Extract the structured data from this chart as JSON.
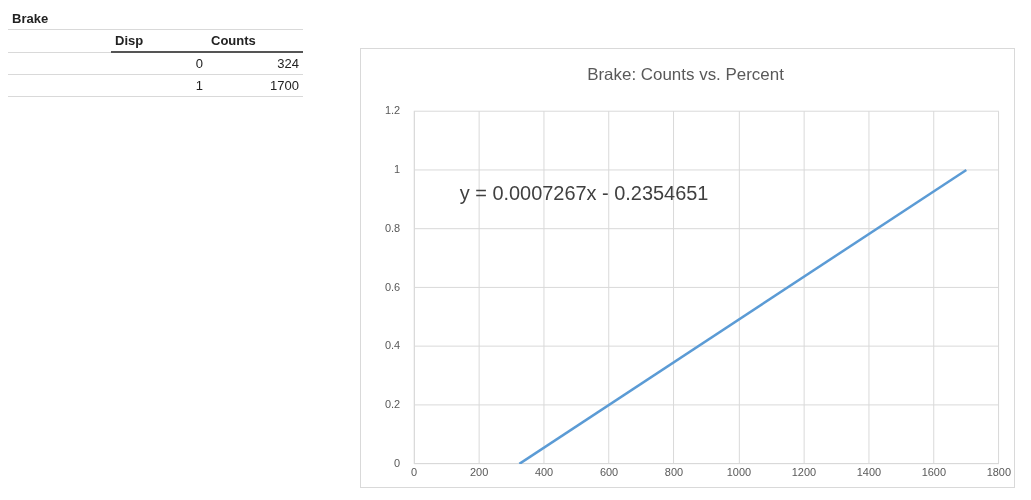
{
  "chart_data": {
    "type": "line",
    "title": "Brake: Counts vs. Percent",
    "annotations": [
      "Brake",
      "Disp",
      "Counts",
      "0",
      "324",
      "1",
      "1700",
      "y = 0.0007267x - 0.2354651"
    ],
    "series": [
      {
        "type": "line",
        "color": "#5b9bd5",
        "x": [
          324,
          1700
        ],
        "values": [
          0,
          1
        ]
      }
    ],
    "xlim": [
      0,
      1800
    ],
    "xticks": [
      0,
      200,
      400,
      600,
      800,
      1000,
      1200,
      1400,
      1600,
      1800
    ],
    "ylim": [
      0,
      1.2
    ],
    "yticks": [
      0,
      0.2,
      0.4,
      0.6,
      0.8,
      1,
      1.2
    ],
    "grid": true,
    "legend": false,
    "marker": "none",
    "line_style": "solid"
  }
}
